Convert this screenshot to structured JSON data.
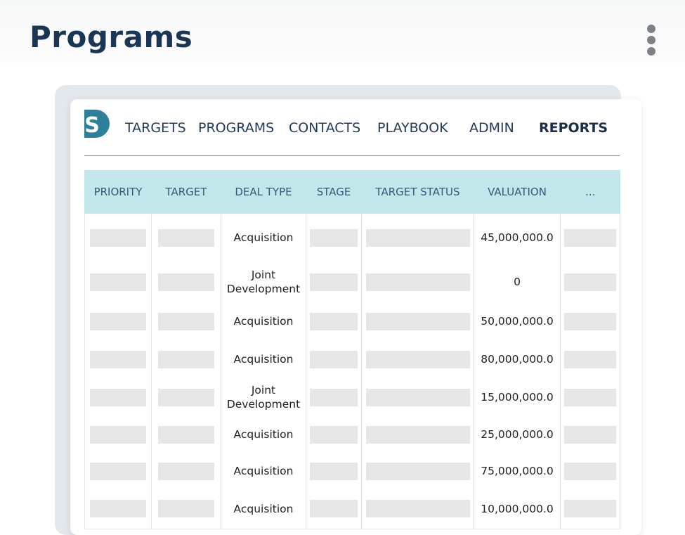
{
  "page": {
    "title": "Programs"
  },
  "header_menu": {
    "icon": "kebab-menu-icon"
  },
  "brand": {
    "logo_letter": "S",
    "logo_color": "#2d7f9a"
  },
  "nav": {
    "items": [
      {
        "label": "TARGETS",
        "active": false
      },
      {
        "label": "PROGRAMS",
        "active": false
      },
      {
        "label": "CONTACTS",
        "active": false
      },
      {
        "label": "PLAYBOOK",
        "active": false
      },
      {
        "label": "ADMIN",
        "active": false
      },
      {
        "label": "REPORTS",
        "active": true
      }
    ]
  },
  "table": {
    "header_bg": "#c3e6ea",
    "columns": [
      "PRIORITY",
      "TARGET",
      "DEAL TYPE",
      "STAGE",
      "TARGET STATUS",
      "VALUATION",
      "..."
    ],
    "rows": [
      {
        "deal_type": "Acquisition",
        "valuation": "45,000,000.0"
      },
      {
        "deal_type": "Joint Development",
        "valuation": "0"
      },
      {
        "deal_type": "Acquisition",
        "valuation": "50,000,000.0"
      },
      {
        "deal_type": "Acquisition",
        "valuation": "80,000,000.0"
      },
      {
        "deal_type": "Joint Development",
        "valuation": "15,000,000.0"
      },
      {
        "deal_type": "Acquisition",
        "valuation": "25,000,000.0"
      },
      {
        "deal_type": "Acquisition",
        "valuation": "75,000,000.0"
      },
      {
        "deal_type": "Acquisition",
        "valuation": "10,000,000.0"
      }
    ]
  }
}
